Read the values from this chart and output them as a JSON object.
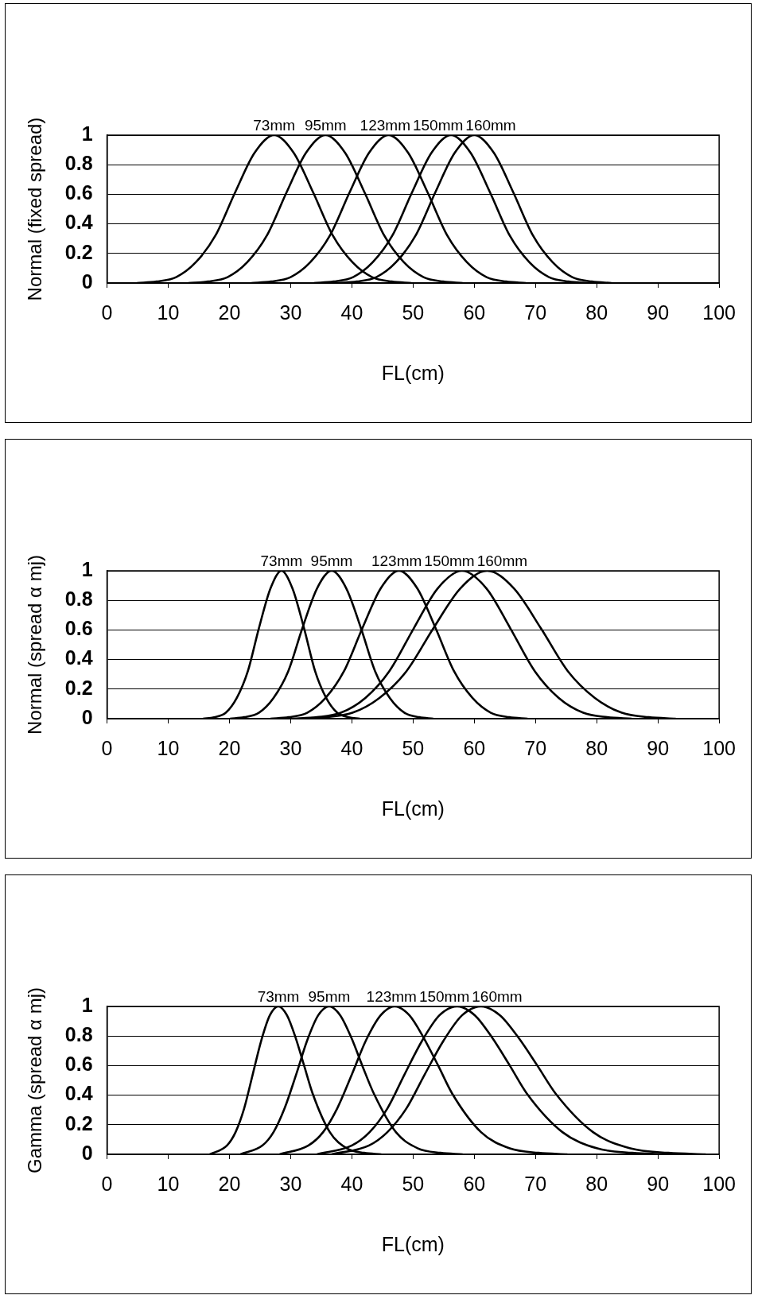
{
  "chart_data": [
    {
      "type": "line",
      "ylabel": "Normal (fixed spread)",
      "xlabel": "FL(cm)",
      "xlim": [
        0,
        100
      ],
      "xticks": [
        0,
        10,
        20,
        30,
        40,
        50,
        60,
        70,
        80,
        90,
        100
      ],
      "ylim": [
        0,
        1
      ],
      "yticks": [
        0,
        0.2,
        0.4,
        0.6,
        0.8,
        1
      ],
      "grid": "y",
      "legend": false,
      "marker": "none",
      "line_style": "solid",
      "series": [
        {
          "name": "73mm",
          "color": "#000000",
          "x": [
            4.9,
            8.1,
            11.3,
            14.5,
            17.7,
            20.9,
            24.1,
            27.3,
            30.5,
            33.7,
            36.9,
            40.1,
            43.3,
            46.5,
            49.7
          ],
          "values": [
            0,
            0.01,
            0.04,
            0.14,
            0.32,
            0.61,
            0.88,
            1,
            0.88,
            0.61,
            0.32,
            0.14,
            0.04,
            0.01,
            0
          ]
        },
        {
          "name": "95mm",
          "color": "#000000",
          "x": [
            13.3,
            16.5,
            19.7,
            22.9,
            26.1,
            29.3,
            32.5,
            35.7,
            38.9,
            42.1,
            45.3,
            48.5,
            51.7,
            54.9,
            58.1
          ],
          "values": [
            0,
            0.01,
            0.04,
            0.14,
            0.32,
            0.61,
            0.88,
            1,
            0.88,
            0.61,
            0.32,
            0.14,
            0.04,
            0.01,
            0
          ]
        },
        {
          "name": "123mm",
          "color": "#000000",
          "x": [
            23.6,
            26.8,
            30,
            33.2,
            36.4,
            39.6,
            42.8,
            46,
            49.2,
            52.4,
            55.6,
            58.8,
            62,
            65.2,
            68.4
          ],
          "values": [
            0,
            0.01,
            0.04,
            0.14,
            0.32,
            0.61,
            0.88,
            1,
            0.88,
            0.61,
            0.32,
            0.14,
            0.04,
            0.01,
            0
          ]
        },
        {
          "name": "150mm",
          "color": "#000000",
          "x": [
            33.8,
            37,
            40.2,
            43.4,
            46.6,
            49.8,
            53,
            56.2,
            59.4,
            62.6,
            65.8,
            69,
            72.2,
            75.4,
            78.6
          ],
          "values": [
            0,
            0.01,
            0.04,
            0.14,
            0.32,
            0.61,
            0.88,
            1,
            0.88,
            0.61,
            0.32,
            0.14,
            0.04,
            0.01,
            0
          ]
        },
        {
          "name": "160mm",
          "color": "#000000",
          "x": [
            37.6,
            40.8,
            44,
            47.2,
            50.4,
            53.6,
            56.8,
            60,
            63.2,
            66.4,
            69.6,
            72.8,
            76,
            79.2,
            82.4
          ],
          "values": [
            0,
            0.01,
            0.04,
            0.14,
            0.32,
            0.61,
            0.88,
            1,
            0.88,
            0.61,
            0.32,
            0.14,
            0.04,
            0.01,
            0
          ]
        }
      ]
    },
    {
      "type": "line",
      "ylabel": "Normal (spread α mj)",
      "xlabel": "FL(cm)",
      "xlim": [
        0,
        100
      ],
      "xticks": [
        0,
        10,
        20,
        30,
        40,
        50,
        60,
        70,
        80,
        90,
        100
      ],
      "ylim": [
        0,
        1
      ],
      "yticks": [
        0,
        0.2,
        0.4,
        0.6,
        0.8,
        1
      ],
      "grid": "y",
      "legend": false,
      "marker": "none",
      "line_style": "solid",
      "series": [
        {
          "name": "73mm",
          "color": "#000000",
          "x": [
            15.7,
            17.5,
            19.4,
            21.2,
            23,
            24.8,
            26.7,
            28.5,
            30.3,
            32.2,
            34,
            35.8,
            37.6,
            39.5,
            41.3
          ],
          "values": [
            0,
            0.01,
            0.04,
            0.14,
            0.32,
            0.61,
            0.88,
            1,
            0.88,
            0.61,
            0.32,
            0.14,
            0.04,
            0.01,
            0
          ]
        },
        {
          "name": "95mm",
          "color": "#000000",
          "x": [
            20.1,
            22.4,
            24.8,
            27.2,
            29.6,
            31.9,
            34.3,
            36.7,
            39.1,
            41.5,
            43.8,
            46.2,
            48.6,
            51,
            53.3
          ],
          "values": [
            0,
            0.01,
            0.04,
            0.14,
            0.32,
            0.61,
            0.88,
            1,
            0.88,
            0.61,
            0.32,
            0.14,
            0.04,
            0.01,
            0
          ]
        },
        {
          "name": "123mm",
          "color": "#000000",
          "x": [
            26.7,
            29.7,
            32.7,
            35.7,
            38.7,
            41.7,
            44.7,
            47.7,
            50.7,
            53.7,
            56.7,
            59.7,
            62.7,
            65.7,
            68.7
          ],
          "values": [
            0,
            0.01,
            0.04,
            0.14,
            0.32,
            0.61,
            0.88,
            1,
            0.88,
            0.61,
            0.32,
            0.14,
            0.04,
            0.01,
            0
          ]
        },
        {
          "name": "150mm",
          "color": "#000000",
          "x": [
            30.3,
            34.3,
            38.2,
            42.2,
            46.1,
            50.1,
            54,
            58,
            62,
            65.9,
            69.9,
            73.8,
            77.8,
            81.7,
            85.7
          ],
          "values": [
            0,
            0.01,
            0.04,
            0.14,
            0.32,
            0.61,
            0.88,
            1,
            0.88,
            0.61,
            0.32,
            0.14,
            0.04,
            0.01,
            0
          ]
        },
        {
          "name": "160mm",
          "color": "#000000",
          "x": [
            31.3,
            35.7,
            40.1,
            44.5,
            48.9,
            53.3,
            57.7,
            62.1,
            66.5,
            70.9,
            75.3,
            79.7,
            84.1,
            88.5,
            92.9
          ],
          "values": [
            0,
            0.01,
            0.04,
            0.14,
            0.32,
            0.61,
            0.88,
            1,
            0.88,
            0.61,
            0.32,
            0.14,
            0.04,
            0.01,
            0
          ]
        }
      ]
    },
    {
      "type": "line",
      "ylabel": "Gamma (spread α mj)",
      "xlabel": "FL(cm)",
      "xlim": [
        0,
        100
      ],
      "xticks": [
        0,
        10,
        20,
        30,
        40,
        50,
        60,
        70,
        80,
        90,
        100
      ],
      "ylim": [
        0,
        1
      ],
      "yticks": [
        0,
        0.2,
        0.4,
        0.6,
        0.8,
        1
      ],
      "grid": "y",
      "legend": false,
      "marker": "none",
      "line_style": "solid",
      "series": [
        {
          "name": "73mm",
          "color": "#000000",
          "x": [
            16.8,
            19.6,
            21,
            22.4,
            23.8,
            25.2,
            26.6,
            28,
            29.4,
            30.8,
            32.2,
            33.6,
            36.4,
            39.2,
            42,
            44.8
          ],
          "values": [
            0,
            0.06,
            0.15,
            0.31,
            0.54,
            0.77,
            0.94,
            1,
            0.94,
            0.79,
            0.6,
            0.41,
            0.15,
            0.04,
            0.01,
            0
          ]
        },
        {
          "name": "95mm",
          "color": "#000000",
          "x": [
            21.8,
            25.4,
            27.2,
            29,
            30.9,
            32.7,
            34.5,
            36.3,
            38.1,
            39.9,
            41.7,
            43.6,
            47.2,
            50.8,
            54.5,
            58.1
          ],
          "values": [
            0,
            0.06,
            0.15,
            0.31,
            0.54,
            0.77,
            0.94,
            1,
            0.94,
            0.79,
            0.6,
            0.41,
            0.15,
            0.04,
            0.01,
            0
          ]
        },
        {
          "name": "123mm",
          "color": "#000000",
          "x": [
            28.2,
            32.9,
            35.3,
            37.6,
            40,
            42.3,
            44.7,
            47,
            49.4,
            51.7,
            54.1,
            56.4,
            61.1,
            65.8,
            70.5,
            75.2
          ],
          "values": [
            0,
            0.06,
            0.15,
            0.31,
            0.54,
            0.77,
            0.94,
            1,
            0.94,
            0.79,
            0.6,
            0.41,
            0.15,
            0.04,
            0.01,
            0
          ]
        },
        {
          "name": "150mm",
          "color": "#000000",
          "x": [
            34.3,
            40,
            42.9,
            45.8,
            48.6,
            51.5,
            54.3,
            57.2,
            60.1,
            62.9,
            65.8,
            68.6,
            74.4,
            80.1,
            85.8,
            91.5
          ],
          "values": [
            0,
            0.06,
            0.15,
            0.31,
            0.54,
            0.77,
            0.94,
            1,
            0.94,
            0.79,
            0.6,
            0.41,
            0.15,
            0.04,
            0.01,
            0
          ]
        },
        {
          "name": "160mm",
          "color": "#000000",
          "x": [
            36.7,
            42.8,
            45.8,
            48.9,
            51.9,
            55,
            58,
            61.1,
            64.2,
            67.2,
            70.3,
            73.3,
            79.4,
            85.5,
            91.7,
            97.8
          ],
          "values": [
            0,
            0.06,
            0.15,
            0.31,
            0.54,
            0.77,
            0.94,
            1,
            0.94,
            0.79,
            0.6,
            0.41,
            0.15,
            0.04,
            0.01,
            0
          ]
        }
      ]
    }
  ]
}
